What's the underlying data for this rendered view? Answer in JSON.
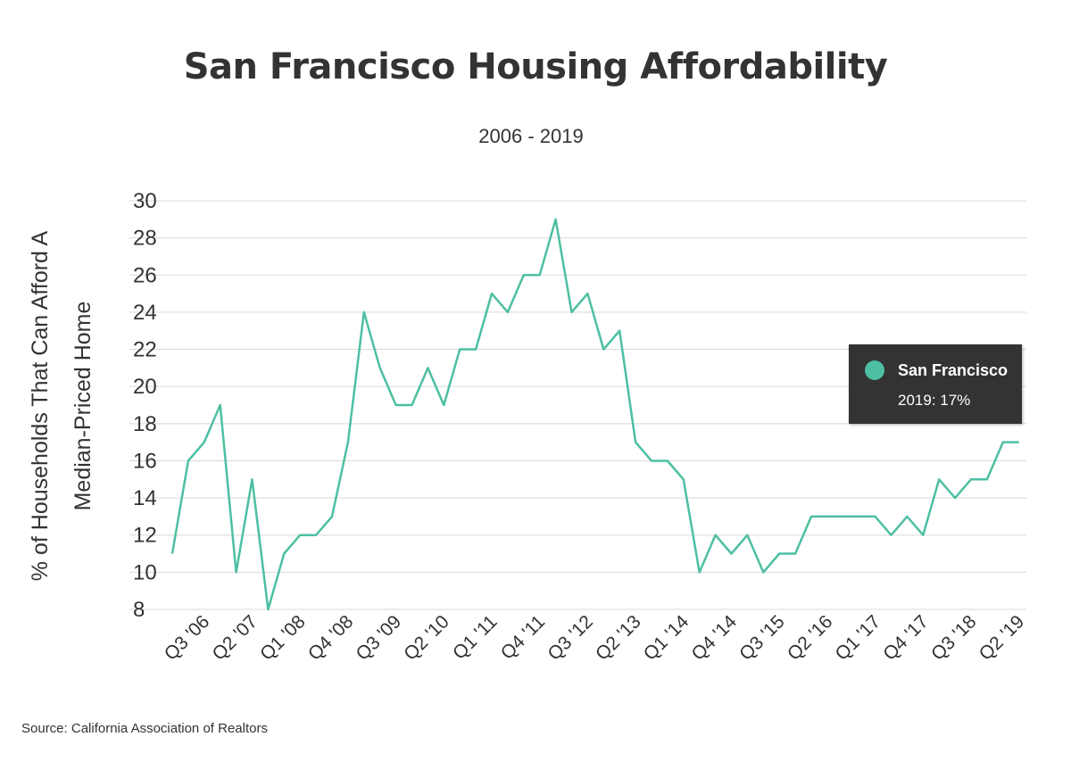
{
  "title": "San Francisco Housing Affordability",
  "subtitle": "2006 - 2019",
  "source": "Source:  California Association of Realtors",
  "colors": {
    "line": "#4dbfa3",
    "grid": "#d9d9d9",
    "text": "#333333",
    "tooltip_bg": "#333333"
  },
  "tooltip": {
    "series": "San Francisco",
    "value": "2019: 17%"
  },
  "chart_data": {
    "type": "line",
    "title": "San Francisco Housing Affordability",
    "subtitle": "2006 - 2019",
    "ylabel_lines": [
      "% of Households That Can Afford A",
      "Median-Priced Home"
    ],
    "ylim": [
      8,
      30
    ],
    "yticks": [
      8,
      10,
      12,
      14,
      16,
      18,
      20,
      22,
      24,
      26,
      28,
      30
    ],
    "grid": true,
    "x_tick_labels": [
      {
        "i": 2,
        "label": "Q3 '06"
      },
      {
        "i": 5,
        "label": "Q2 '07"
      },
      {
        "i": 8,
        "label": "Q1 '08"
      },
      {
        "i": 11,
        "label": "Q4 '08"
      },
      {
        "i": 14,
        "label": "Q3 '09"
      },
      {
        "i": 17,
        "label": "Q2 '10"
      },
      {
        "i": 20,
        "label": "Q1 '11"
      },
      {
        "i": 23,
        "label": "Q4 '11"
      },
      {
        "i": 26,
        "label": "Q3 '12"
      },
      {
        "i": 29,
        "label": "Q2 '13"
      },
      {
        "i": 32,
        "label": "Q1 '14"
      },
      {
        "i": 35,
        "label": "Q4 '14"
      },
      {
        "i": 38,
        "label": "Q3 '15"
      },
      {
        "i": 41,
        "label": "Q2 '16"
      },
      {
        "i": 44,
        "label": "Q1 '17"
      },
      {
        "i": 47,
        "label": "Q4 '17"
      },
      {
        "i": 50,
        "label": "Q3 '18"
      },
      {
        "i": 53,
        "label": "Q2 '19"
      }
    ],
    "series": [
      {
        "name": "San Francisco",
        "values": [
          11,
          16,
          17,
          19,
          10,
          15,
          8,
          11,
          12,
          12,
          13,
          17,
          24,
          21,
          19,
          19,
          21,
          19,
          22,
          22,
          25,
          24,
          26,
          26,
          29,
          24,
          25,
          22,
          23,
          17,
          16,
          16,
          15,
          10,
          12,
          11,
          12,
          10,
          11,
          11,
          13,
          13,
          13,
          13,
          13,
          12,
          13,
          12,
          15,
          14,
          15,
          15,
          17,
          17
        ]
      }
    ]
  }
}
